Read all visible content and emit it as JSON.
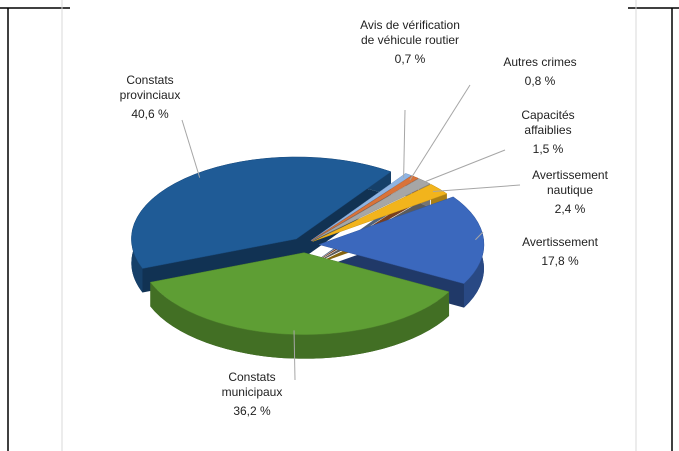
{
  "chart_data": {
    "type": "pie",
    "categories": [
      "Avis de vérification de véhicule routier",
      "Autres crimes",
      "Capacités affaiblies",
      "Avertissement nautique",
      "Avertissement",
      "Constats municipaux",
      "Constats provinciaux"
    ],
    "values": [
      0.7,
      0.8,
      1.5,
      2.4,
      17.8,
      36.2,
      40.6
    ],
    "value_labels": [
      "0,7 %",
      "0,8 %",
      "1,5 %",
      "2,4 %",
      "17,8 %",
      "36,2 %",
      "40,6 %"
    ],
    "colors": [
      "#8fb4e3",
      "#d9733a",
      "#a6a6a6",
      "#f2b41c",
      "#3b68bd",
      "#5e9e34",
      "#1f5b96"
    ]
  }
}
